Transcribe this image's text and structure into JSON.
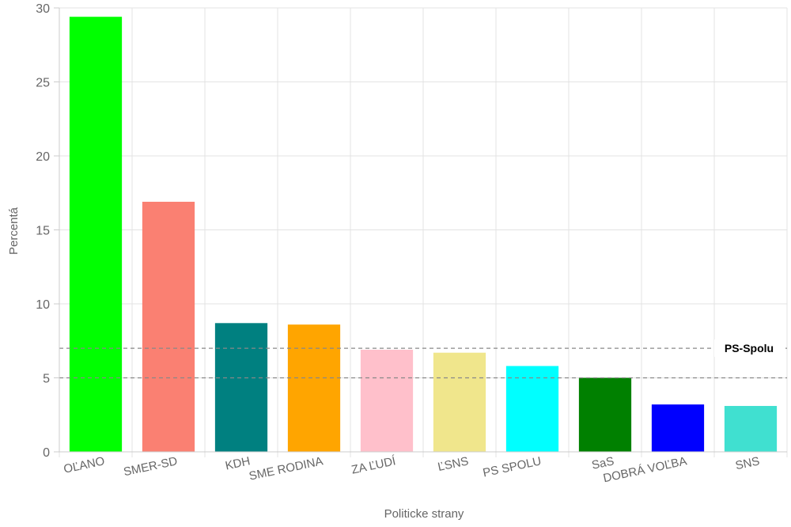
{
  "chart_data": {
    "type": "bar",
    "xlabel": "Politicke strany",
    "ylabel": "Percentá",
    "ylim": [
      0,
      30
    ],
    "yticks": [
      0,
      5,
      10,
      15,
      20,
      25,
      30
    ],
    "grid": true,
    "legend": "none",
    "categories": [
      "OĽANO",
      "SMER-SD",
      "KDH",
      "SME RODINA",
      "ZA ĽUDÍ",
      "ĽSNS",
      "PS SPOLU",
      "SaS",
      "DOBRÁ VOĽBA",
      "SNS"
    ],
    "values": [
      29.4,
      16.9,
      8.7,
      8.6,
      6.9,
      6.7,
      5.8,
      5.0,
      3.2,
      3.1
    ],
    "colors": [
      "#00ff00",
      "#fa8072",
      "#008080",
      "#ffa500",
      "#ffc0cb",
      "#f0e68c",
      "#00ffff",
      "#008000",
      "#0000ff",
      "#40e0d0"
    ],
    "reference_lines": [
      {
        "value": 7,
        "label": "PS-Spolu"
      },
      {
        "value": 5,
        "label": ""
      }
    ]
  }
}
